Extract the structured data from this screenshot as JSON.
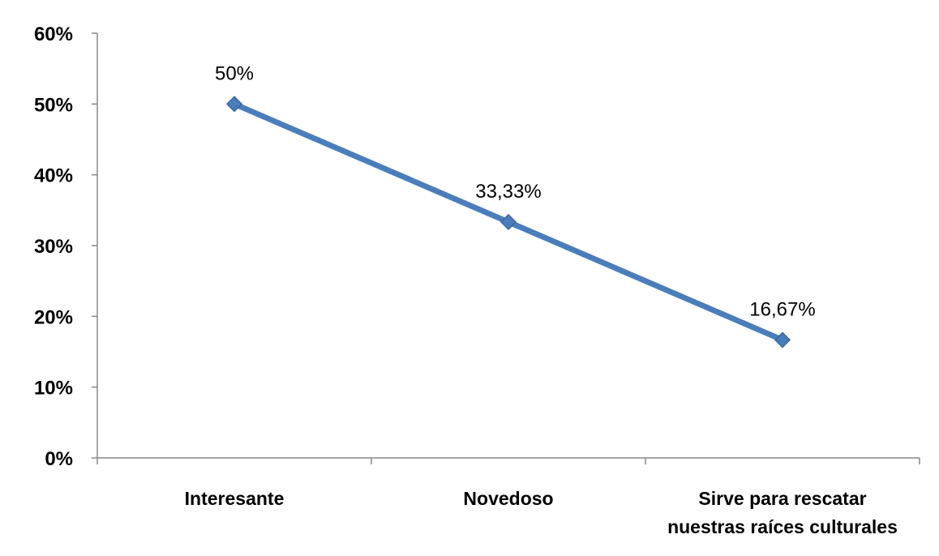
{
  "chart_data": {
    "type": "line",
    "categories": [
      [
        "Interesante"
      ],
      [
        "Novedoso"
      ],
      [
        "Sirve para rescatar",
        "nuestras raíces culturales"
      ]
    ],
    "series": [
      {
        "values": [
          50,
          33.33,
          16.67
        ],
        "data_labels": [
          "50%",
          "33,33%",
          "16,67%"
        ]
      }
    ],
    "y_ticks": [
      "0%",
      "10%",
      "20%",
      "30%",
      "40%",
      "50%",
      "60%"
    ],
    "ylim": [
      0,
      60
    ],
    "grid": false,
    "legend": "none",
    "marker": "diamond"
  },
  "colors": {
    "line": "#4a7ebb",
    "marker": "#4a7ebb",
    "marker_edge": "#3a66a0",
    "axis": "#888888"
  }
}
